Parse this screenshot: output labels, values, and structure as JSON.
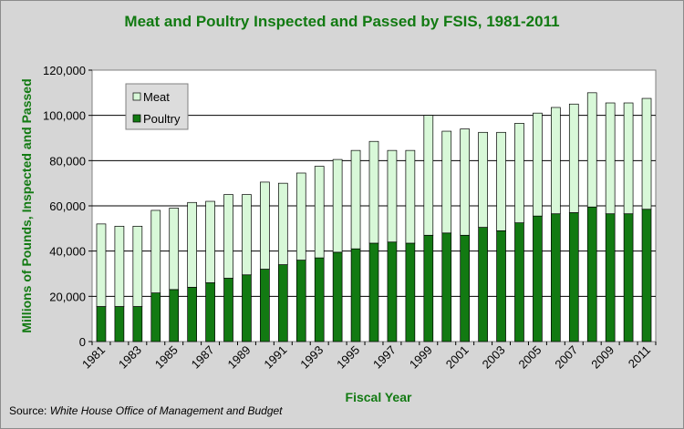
{
  "chart_data": {
    "type": "bar",
    "stacked": true,
    "title": "Meat and Poultry Inspected and Passed by FSIS, 1981-2011",
    "xlabel": "Fiscal Year",
    "ylabel": "Millions of Pounds, Inspected and Passed",
    "ylim": [
      0,
      120000
    ],
    "yticks": [
      "0",
      "20,000",
      "40,000",
      "60,000",
      "80,000",
      "100,000",
      "120,000"
    ],
    "grid": true,
    "legend_position": "top-left",
    "categories": [
      "1981",
      "1982",
      "1983",
      "1984",
      "1985",
      "1986",
      "1987",
      "1988",
      "1989",
      "1990",
      "1991",
      "1992",
      "1993",
      "1994",
      "1995",
      "1996",
      "1997",
      "1998",
      "1999",
      "2000",
      "2001",
      "2002",
      "2003",
      "2004",
      "2005",
      "2006",
      "2007",
      "2008",
      "2009",
      "2010",
      "2011"
    ],
    "x_tick_labels_shown": [
      "1981",
      "1983",
      "1985",
      "1987",
      "1989",
      "1991",
      "1993",
      "1995",
      "1997",
      "1999",
      "2001",
      "2003",
      "2005",
      "2007",
      "2009",
      "2011"
    ],
    "series": [
      {
        "name": "Poultry",
        "color": "#127a12",
        "values": [
          15500,
          15500,
          15500,
          21500,
          23000,
          24000,
          26000,
          28000,
          29500,
          32000,
          34000,
          36000,
          37000,
          39500,
          41000,
          43500,
          44000,
          43500,
          47000,
          48000,
          47000,
          50500,
          49000,
          52500,
          55500,
          56500,
          57000,
          59500,
          56500,
          56500,
          58500
        ]
      },
      {
        "name": "Meat",
        "color": "#d8f8d8",
        "values": [
          36500,
          35500,
          35500,
          36500,
          36000,
          37500,
          36000,
          37000,
          35500,
          38500,
          36000,
          38500,
          40500,
          41000,
          43500,
          45000,
          40500,
          41000,
          53000,
          45000,
          47000,
          42000,
          43500,
          44000,
          45500,
          47000,
          48000,
          50500,
          49000,
          49000,
          49000
        ]
      }
    ],
    "source_label": "Source: ",
    "source_text": "White House Office of Management and Budget"
  },
  "colors": {
    "title": "#127a12",
    "plot_background": "#ffffff",
    "frame_background": "#d6d6d6",
    "legend_background": "#dcdcdc"
  }
}
